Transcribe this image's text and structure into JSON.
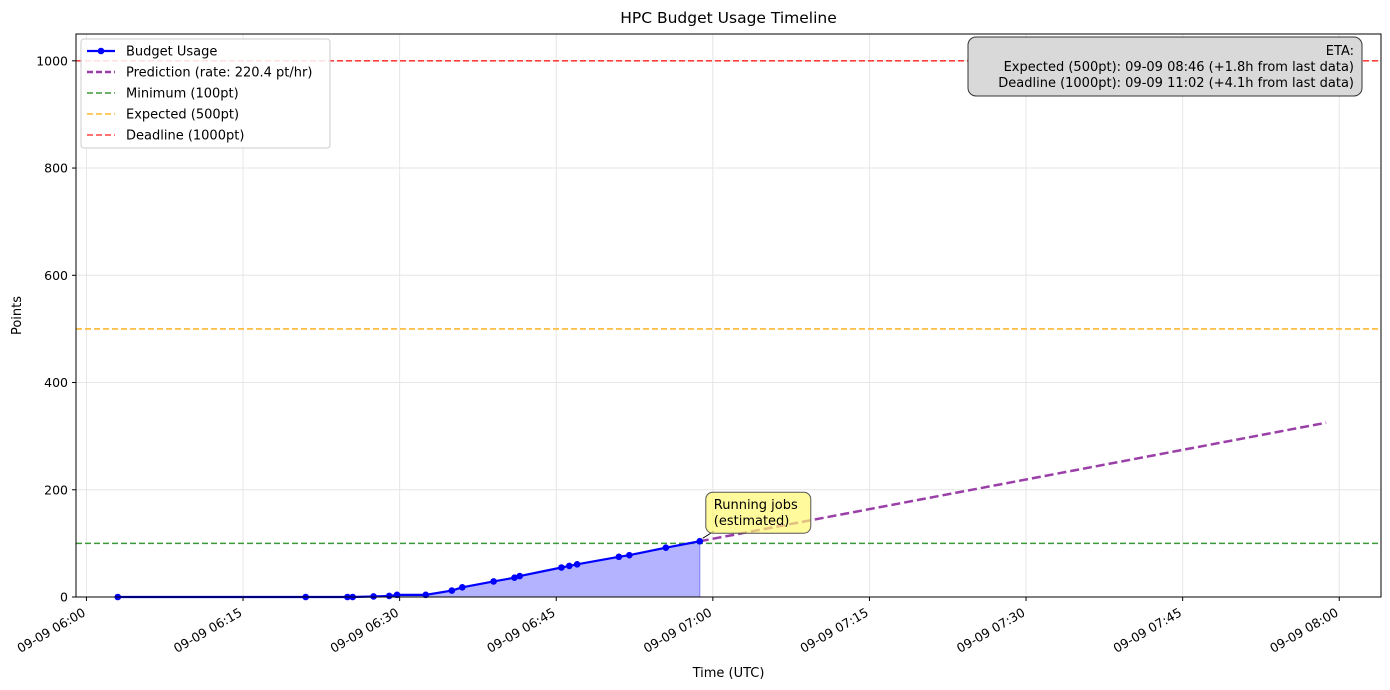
{
  "chart_data": {
    "type": "line",
    "title": "HPC Budget Usage Timeline",
    "xlabel": "Time (UTC)",
    "ylabel": "Points",
    "ylim": [
      0,
      1050
    ],
    "xlim": [
      "09-09 05:59:00",
      "09-09 08:04:00"
    ],
    "grid": true,
    "legend_position": "top-left",
    "x_ticks": [
      "09-09 06:00",
      "09-09 06:15",
      "09-09 06:30",
      "09-09 06:45",
      "09-09 07:00",
      "09-09 07:15",
      "09-09 07:30",
      "09-09 07:45",
      "09-09 08:00"
    ],
    "y_ticks": [
      "0",
      "200",
      "400",
      "600",
      "800",
      "1000"
    ],
    "series": [
      {
        "name": "Budget Usage",
        "kind": "line-markers-filled",
        "color": "#0000ff",
        "fill_color": "#b3b3ff",
        "points": [
          {
            "x": "09-09 06:03",
            "y": 0
          },
          {
            "x": "09-09 06:21",
            "y": 0
          },
          {
            "x": "09-09 06:25",
            "y": 0
          },
          {
            "x": "09-09 06:25:30",
            "y": 0
          },
          {
            "x": "09-09 06:27:30",
            "y": 1
          },
          {
            "x": "09-09 06:29",
            "y": 2
          },
          {
            "x": "09-09 06:29:45",
            "y": 4
          },
          {
            "x": "09-09 06:32:30",
            "y": 4
          },
          {
            "x": "09-09 06:35",
            "y": 12
          },
          {
            "x": "09-09 06:36",
            "y": 18
          },
          {
            "x": "09-09 06:39",
            "y": 29
          },
          {
            "x": "09-09 06:41",
            "y": 36
          },
          {
            "x": "09-09 06:41:30",
            "y": 39
          },
          {
            "x": "09-09 06:45:30",
            "y": 55
          },
          {
            "x": "09-09 06:46:15",
            "y": 58
          },
          {
            "x": "09-09 06:47",
            "y": 61
          },
          {
            "x": "09-09 06:51",
            "y": 75
          },
          {
            "x": "09-09 06:52",
            "y": 78
          },
          {
            "x": "09-09 06:55:30",
            "y": 92
          },
          {
            "x": "09-09 06:58:45",
            "y": 104
          }
        ]
      },
      {
        "name": "Prediction (rate: 220.4 pt/hr)",
        "kind": "dashed-line",
        "color": "#9b3fa8",
        "points": [
          {
            "x": "09-09 06:58:45",
            "y": 104
          },
          {
            "x": "09-09 07:58:45",
            "y": 325
          }
        ]
      }
    ],
    "reference_lines": [
      {
        "name": "Minimum (100pt)",
        "y": 100,
        "color": "#3a9a3a"
      },
      {
        "name": "Expected (500pt)",
        "y": 500,
        "color": "#ffb833"
      },
      {
        "name": "Deadline (1000pt)",
        "y": 1000,
        "color": "#ff4040"
      }
    ],
    "annotations": {
      "running_jobs": {
        "lines": [
          "Running jobs",
          "(estimated)"
        ],
        "x": "09-09 06:58:45",
        "y": 104,
        "background": "#fff870"
      },
      "eta": {
        "lines": [
          "ETA:",
          "Expected (500pt): 09-09 08:46 (+1.8h from last data)",
          "Deadline (1000pt): 09-09 11:02 (+4.1h from last data)"
        ],
        "background": "#d9d9d9"
      }
    }
  }
}
